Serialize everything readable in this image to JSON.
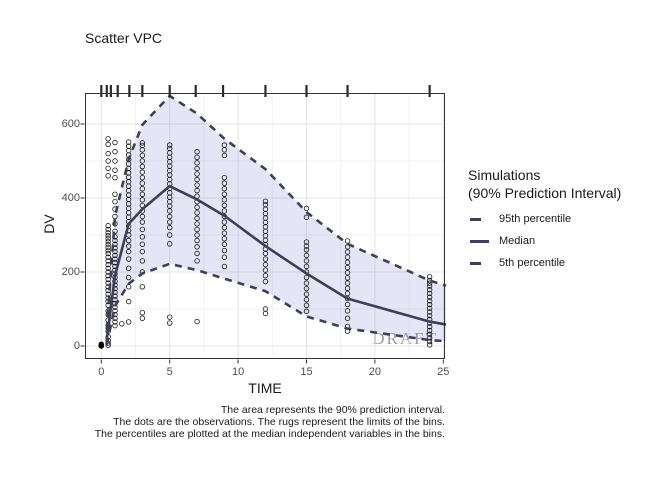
{
  "title": "Scatter VPC",
  "watermark": "DRAFT",
  "axes": {
    "x": {
      "label": "TIME",
      "ticks": [
        0,
        5,
        10,
        15,
        20,
        25
      ],
      "minor_ticks": [
        2.5,
        7.5,
        12.5,
        17.5,
        22.5
      ]
    },
    "y": {
      "label": "DV",
      "ticks": [
        0,
        200,
        400,
        600
      ],
      "minor_ticks": [
        100,
        300,
        500
      ]
    }
  },
  "legend": {
    "title_line1": "Simulations",
    "title_line2": "(90% Prediction Interval)",
    "items": [
      {
        "key": "dashed",
        "label": "95th percentile"
      },
      {
        "key": "solid",
        "label": "Median"
      },
      {
        "key": "dashed",
        "label": "5th percentile"
      }
    ]
  },
  "caption": {
    "line1": "The area represents the 90% prediction interval.",
    "line2": "The dots are the observations. The rugs represent the limits of the bins.",
    "line3": "The percentiles are plotted at the median independent variables in the bins."
  },
  "colors": {
    "ribbon_fill": "rgba(132,124,209,0.20)",
    "line": "#3e4059",
    "point_stroke": "#000000",
    "grid_major": "#e4e4e4",
    "grid_minor": "#f1f1f1",
    "panel_border": "#333333",
    "tick": "#333333",
    "rug": "#2a2a2a",
    "watermark": "#8a8a8a"
  },
  "chart_data": {
    "type": "scatter",
    "title": "Scatter VPC",
    "xlabel": "TIME",
    "ylabel": "DV",
    "xlim": [
      -1.2,
      25.2
    ],
    "ylim": [
      -35,
      684
    ],
    "legend_position": "right",
    "grid": true,
    "series": [
      {
        "name": "95th percentile",
        "style": "dashed",
        "points": [
          [
            0.4,
            45
          ],
          [
            1,
            350
          ],
          [
            2,
            505
          ],
          [
            3,
            598
          ],
          [
            5,
            676
          ],
          [
            7,
            628
          ],
          [
            9,
            560
          ],
          [
            12,
            478
          ],
          [
            15,
            362
          ],
          [
            18,
            276
          ],
          [
            24,
            177
          ],
          [
            25.2,
            163
          ]
        ]
      },
      {
        "name": "Median",
        "style": "solid",
        "points": [
          [
            0.4,
            18
          ],
          [
            1,
            190
          ],
          [
            2,
            330
          ],
          [
            3,
            370
          ],
          [
            5,
            432
          ],
          [
            7,
            396
          ],
          [
            9,
            352
          ],
          [
            12,
            270
          ],
          [
            15,
            196
          ],
          [
            18,
            128
          ],
          [
            24,
            66
          ],
          [
            25.2,
            58
          ]
        ]
      },
      {
        "name": "5th percentile",
        "style": "dashed",
        "points": [
          [
            0.4,
            4
          ],
          [
            1,
            108
          ],
          [
            2,
            168
          ],
          [
            3,
            196
          ],
          [
            5,
            222
          ],
          [
            7,
            205
          ],
          [
            9,
            182
          ],
          [
            12,
            148
          ],
          [
            15,
            80
          ],
          [
            18,
            47
          ],
          [
            24,
            16
          ],
          [
            25.2,
            13
          ]
        ]
      }
    ],
    "ribbon": {
      "upper": "95th percentile",
      "lower": "5th percentile",
      "label": "90% prediction interval"
    },
    "rug_times": [
      0,
      0.4,
      0.7,
      1.2,
      2.05,
      3,
      5,
      6.9,
      8.9,
      12,
      15,
      18,
      24
    ],
    "observations": [
      {
        "t": 0,
        "filled": true,
        "dv": [
          0,
          0,
          1,
          3,
          5
        ]
      },
      {
        "t": 0.5,
        "dv": [
          2,
          8,
          15,
          25,
          40,
          55,
          70,
          85,
          95,
          110,
          120,
          130,
          140,
          150,
          160,
          170,
          180,
          190,
          200,
          210,
          220,
          230,
          240,
          250,
          258,
          266,
          274,
          282,
          290,
          298,
          306,
          315,
          325,
          460,
          480,
          500,
          520,
          545,
          560
        ]
      },
      {
        "t": 1,
        "dv": [
          55,
          65,
          75,
          85,
          95,
          105,
          115,
          125,
          135,
          145,
          155,
          165,
          175,
          185,
          195,
          205,
          215,
          225,
          235,
          245,
          255,
          265,
          275,
          285,
          295,
          310,
          330,
          350,
          370,
          390,
          410,
          455,
          475,
          500,
          525,
          550
        ]
      },
      {
        "t": 1.5,
        "dv": [
          60
        ]
      },
      {
        "t": 2,
        "dv": [
          65,
          120,
          160,
          185,
          210,
          235,
          255,
          270,
          285,
          300,
          312,
          324,
          336,
          348,
          360,
          372,
          384,
          396,
          408,
          420,
          432,
          444,
          456,
          468,
          480,
          492,
          504,
          516,
          528,
          540,
          551
        ]
      },
      {
        "t": 3,
        "dv": [
          75,
          90,
          160,
          200,
          230,
          255,
          275,
          295,
          315,
          335,
          350,
          365,
          380,
          395,
          410,
          425,
          440,
          455,
          470,
          485,
          500,
          515,
          530,
          542,
          549
        ]
      },
      {
        "t": 5,
        "dv": [
          62,
          78,
          276,
          300,
          320,
          335,
          350,
          365,
          378,
          390,
          402,
          414,
          426,
          438,
          450,
          462,
          474,
          486,
          498,
          510,
          522,
          534,
          543
        ]
      },
      {
        "t": 7,
        "dv": [
          66,
          230,
          250,
          268,
          285,
          300,
          315,
          330,
          345,
          360,
          375,
          390,
          405,
          420,
          435,
          450,
          465,
          480,
          495,
          510,
          525
        ]
      },
      {
        "t": 9,
        "dv": [
          215,
          240,
          258,
          275,
          290,
          305,
          320,
          335,
          350,
          365,
          380,
          395,
          410,
          425,
          440,
          455,
          515,
          530,
          543
        ]
      },
      {
        "t": 12,
        "dv": [
          88,
          100,
          174,
          190,
          205,
          220,
          235,
          250,
          262,
          274,
          286,
          298,
          310,
          322,
          334,
          346,
          358,
          370,
          382,
          391
        ]
      },
      {
        "t": 15,
        "dv": [
          94,
          110,
          125,
          140,
          155,
          170,
          185,
          200,
          215,
          230,
          245,
          260,
          270,
          281,
          348,
          372
        ]
      },
      {
        "t": 18,
        "dv": [
          40,
          53,
          75,
          95,
          112,
          128,
          142,
          156,
          170,
          184,
          198,
          212,
          226,
          240,
          254,
          268,
          284
        ]
      },
      {
        "t": 24,
        "dv": [
          3,
          12,
          22,
          32,
          42,
          52,
          62,
          72,
          82,
          92,
          102,
          112,
          122,
          132,
          142,
          152,
          162,
          170,
          177,
          187
        ]
      }
    ]
  }
}
